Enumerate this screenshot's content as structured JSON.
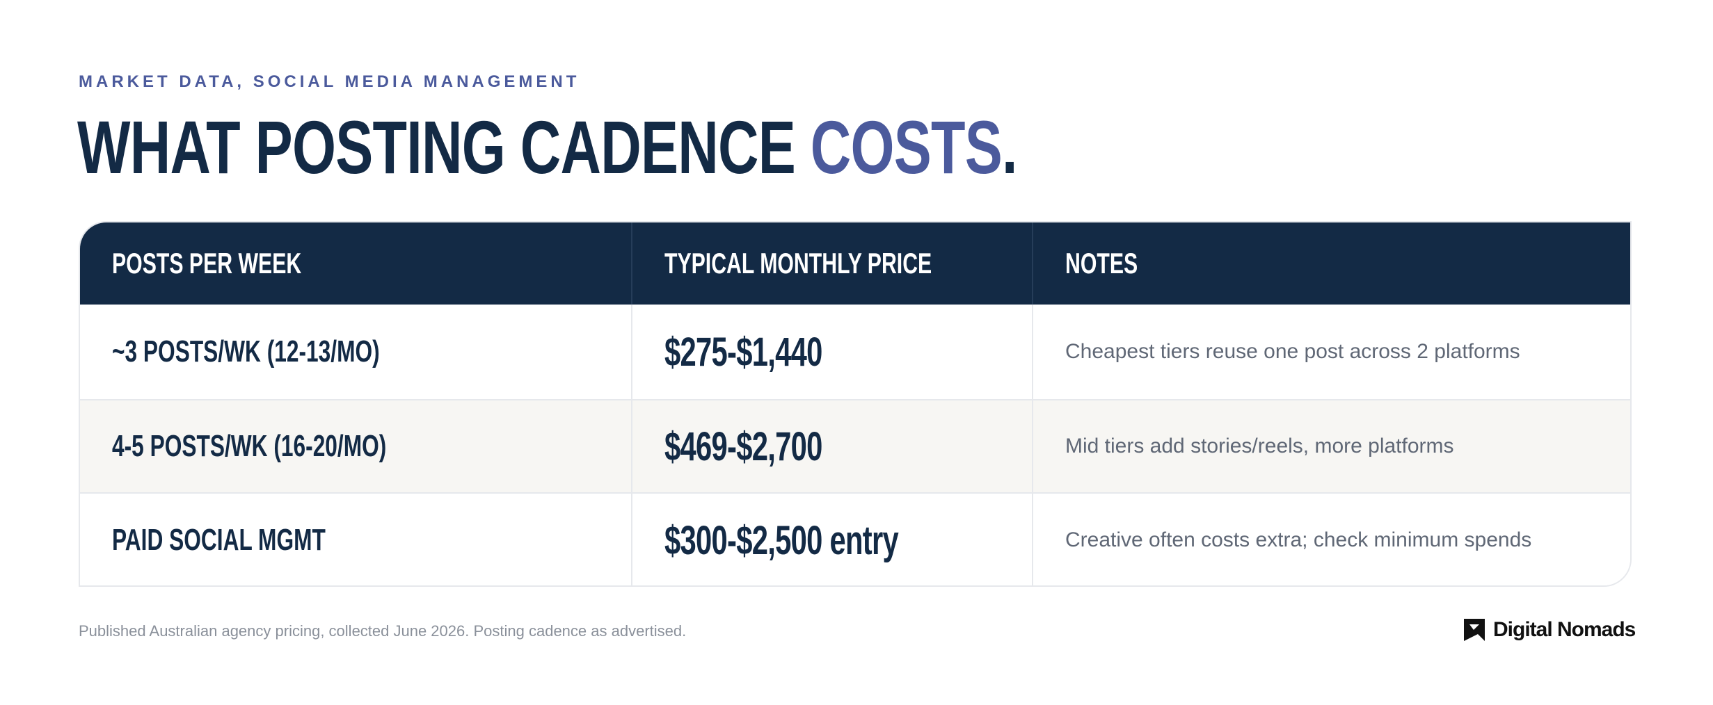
{
  "eyebrow": "MARKET DATA, SOCIAL MEDIA MANAGEMENT",
  "headline": {
    "main": "WHAT POSTING CADENCE ",
    "accent": "COSTS",
    "end": "."
  },
  "table": {
    "headers": [
      "POSTS PER WEEK",
      "TYPICAL MONTHLY PRICE",
      "NOTES"
    ],
    "rows": [
      {
        "cadence": "~3 POSTS/WK (12-13/MO)",
        "price": "$275-$1,440",
        "price_suffix": "",
        "note": "Cheapest tiers reuse one post across 2 platforms"
      },
      {
        "cadence": "4-5 POSTS/WK (16-20/MO)",
        "price": "$469-$2,700",
        "price_suffix": "",
        "note": "Mid tiers add stories/reels, more platforms"
      },
      {
        "cadence": "PAID SOCIAL MGMT",
        "price": "$300-$2,500",
        "price_suffix": " entry",
        "note": "Creative often costs extra; check minimum spends"
      }
    ]
  },
  "footnote": "Published Australian agency pricing, collected June 2026. Posting cadence as advertised.",
  "brand": {
    "name": "Digital Nomads",
    "icon": "digital-nomads-logo-icon"
  },
  "colors": {
    "navy": "#132a45",
    "accent": "#4b5a9c",
    "stripe": "#f7f6f3",
    "note_text": "#5f6775"
  }
}
